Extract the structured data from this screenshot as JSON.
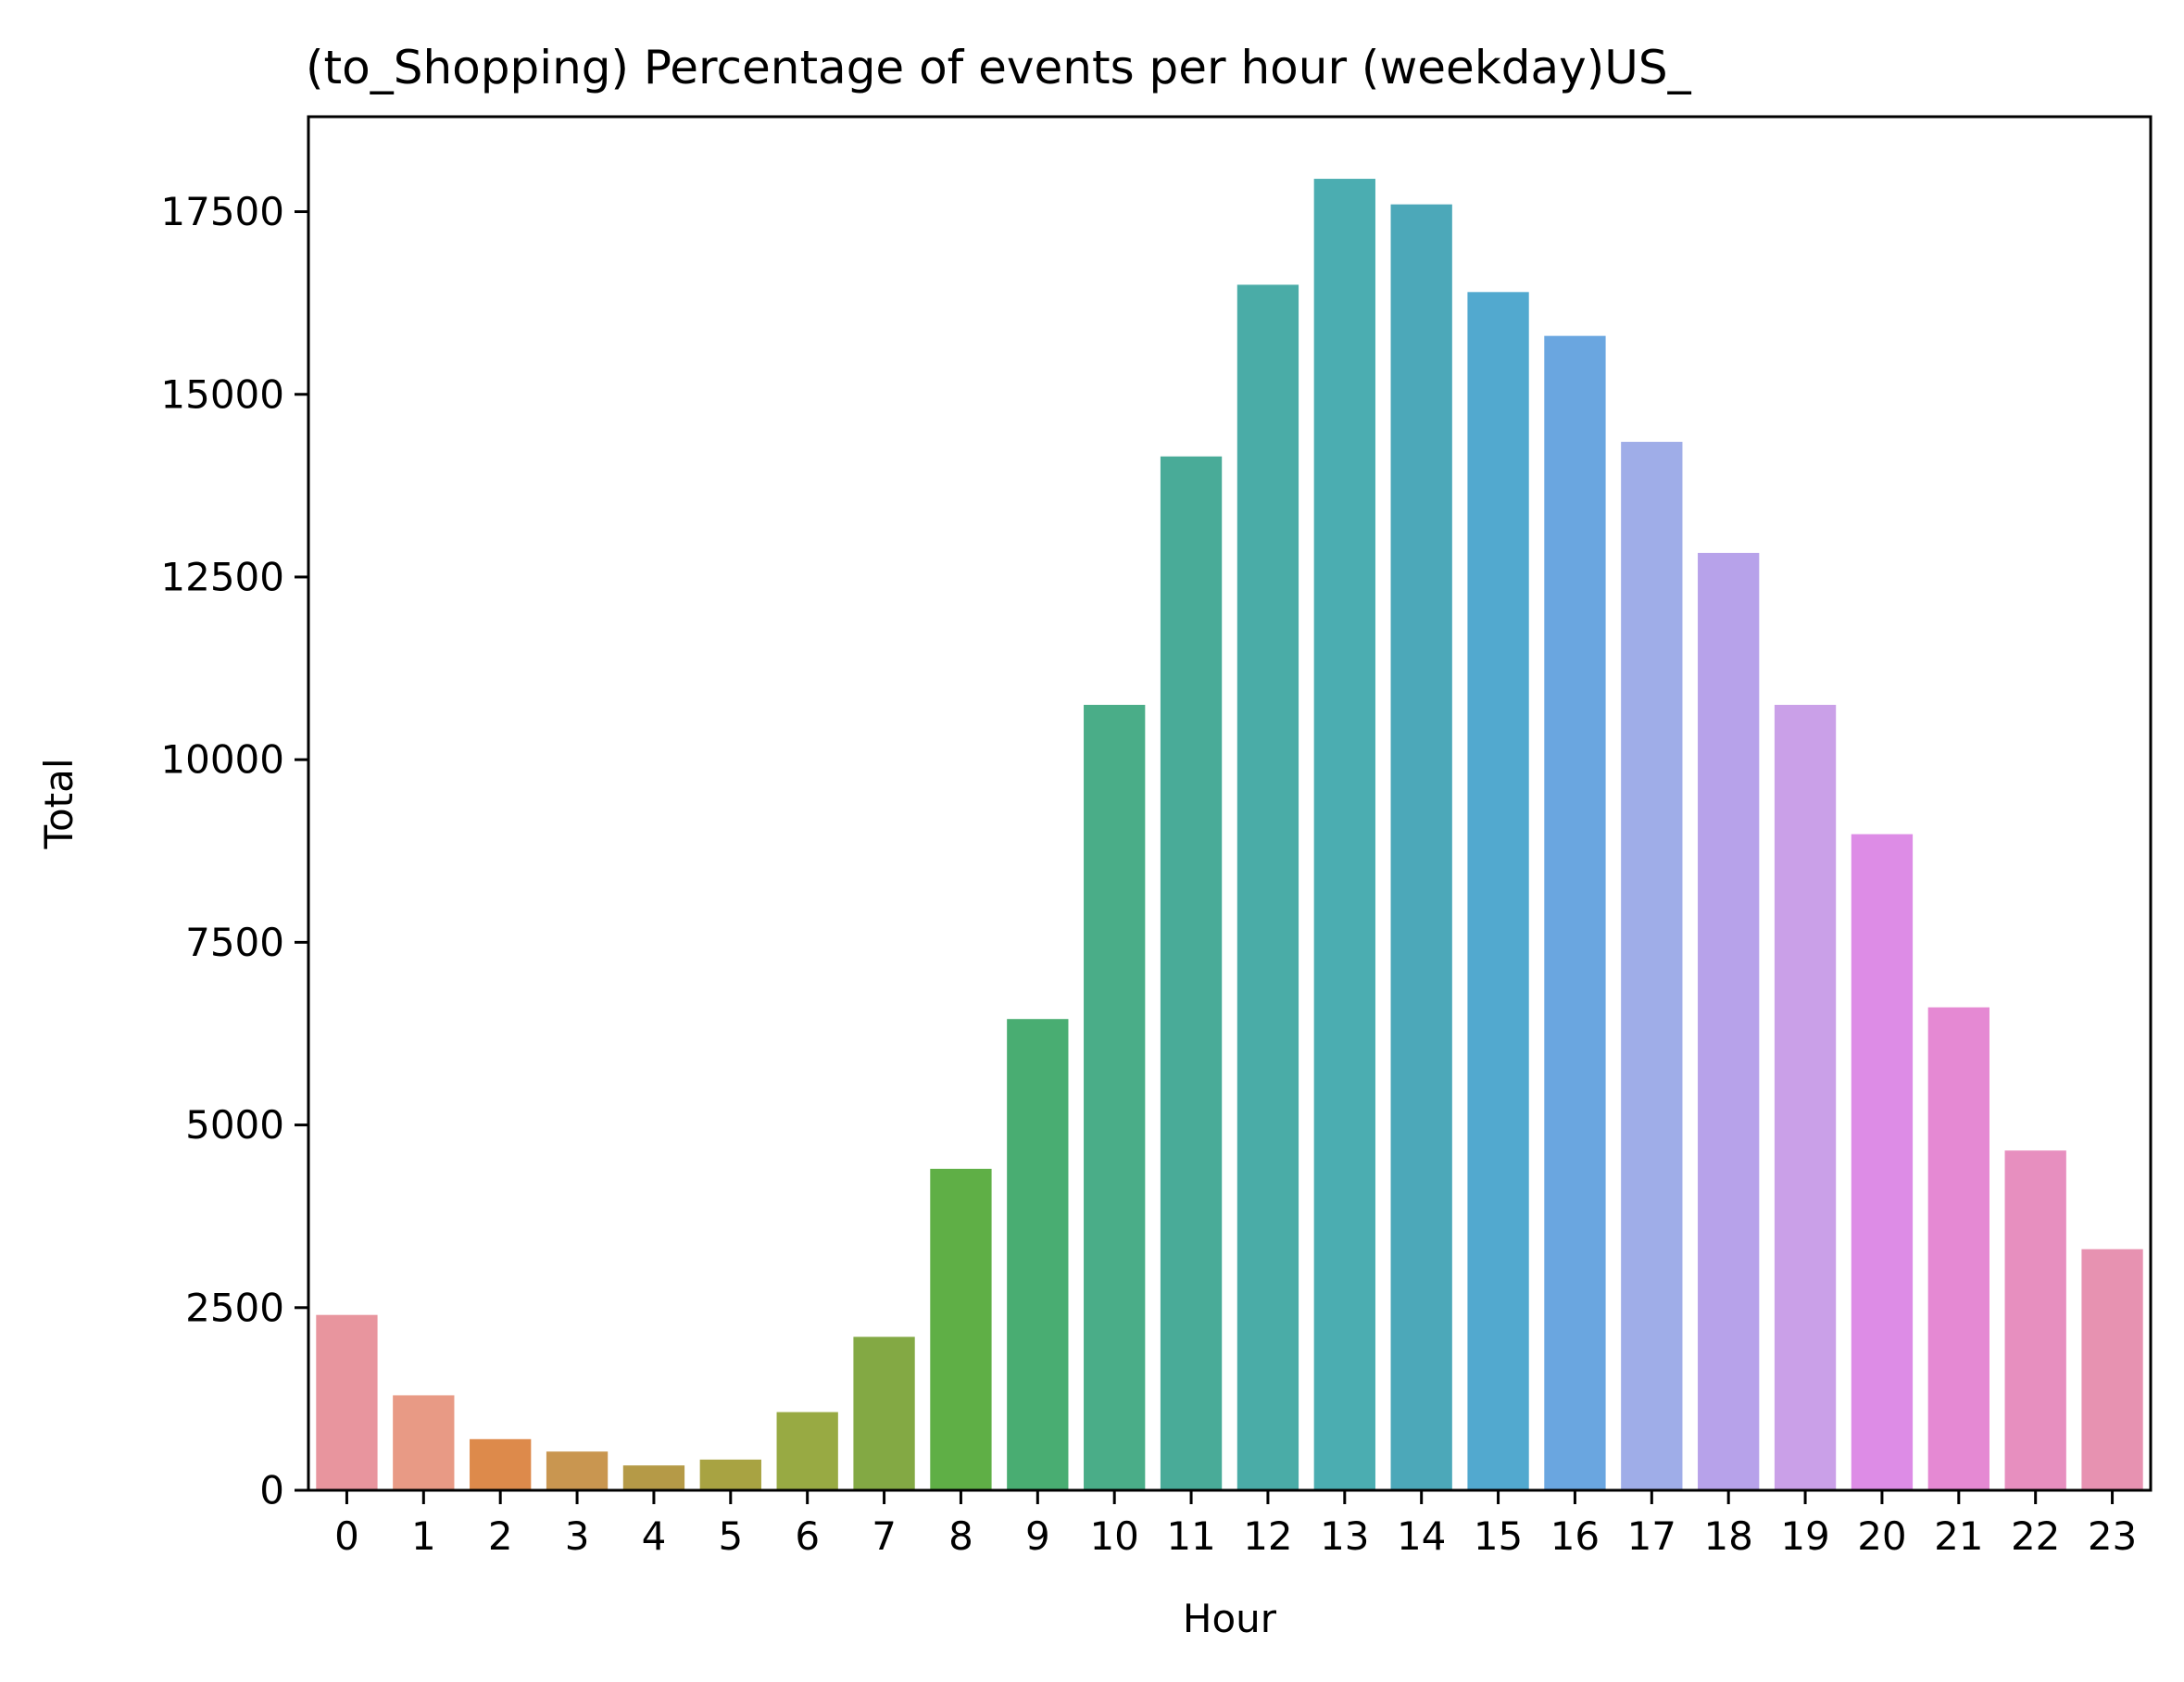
{
  "chart_data": {
    "type": "bar",
    "title": "(to_Shopping) Percentage of events per hour (weekday)US_",
    "xlabel": "Hour",
    "ylabel": "Total",
    "categories": [
      "0",
      "1",
      "2",
      "3",
      "4",
      "5",
      "6",
      "7",
      "8",
      "9",
      "10",
      "11",
      "12",
      "13",
      "14",
      "15",
      "16",
      "17",
      "18",
      "19",
      "20",
      "21",
      "22",
      "23"
    ],
    "values": [
      2400,
      1300,
      700,
      530,
      340,
      420,
      1070,
      2100,
      4400,
      6450,
      10750,
      14150,
      16500,
      17950,
      17600,
      16400,
      15800,
      14350,
      12830,
      10750,
      8980,
      6610,
      4650,
      3300
    ],
    "colors": [
      "#e8959e",
      "#e89a85",
      "#dd8a4b",
      "#c99650",
      "#b59a47",
      "#a8a342",
      "#98aa43",
      "#83a944",
      "#5faf46",
      "#49ad72",
      "#4aad88",
      "#49ab98",
      "#4aaca7",
      "#4badb1",
      "#4ca8b9",
      "#52a9cf",
      "#6aa6e0",
      "#9fade8",
      "#b7a2ea",
      "#caa0e8",
      "#dd8ce6",
      "#e589d3",
      "#e78fbf",
      "#e792b1"
    ],
    "yticks": [
      0,
      2500,
      5000,
      7500,
      10000,
      12500,
      15000,
      17500
    ],
    "ytick_labels": [
      "0",
      "2500",
      "5000",
      "7500",
      "10000",
      "12500",
      "15000",
      "17500"
    ],
    "ylim": [
      0,
      18800
    ],
    "grid": false,
    "legend": "none"
  }
}
